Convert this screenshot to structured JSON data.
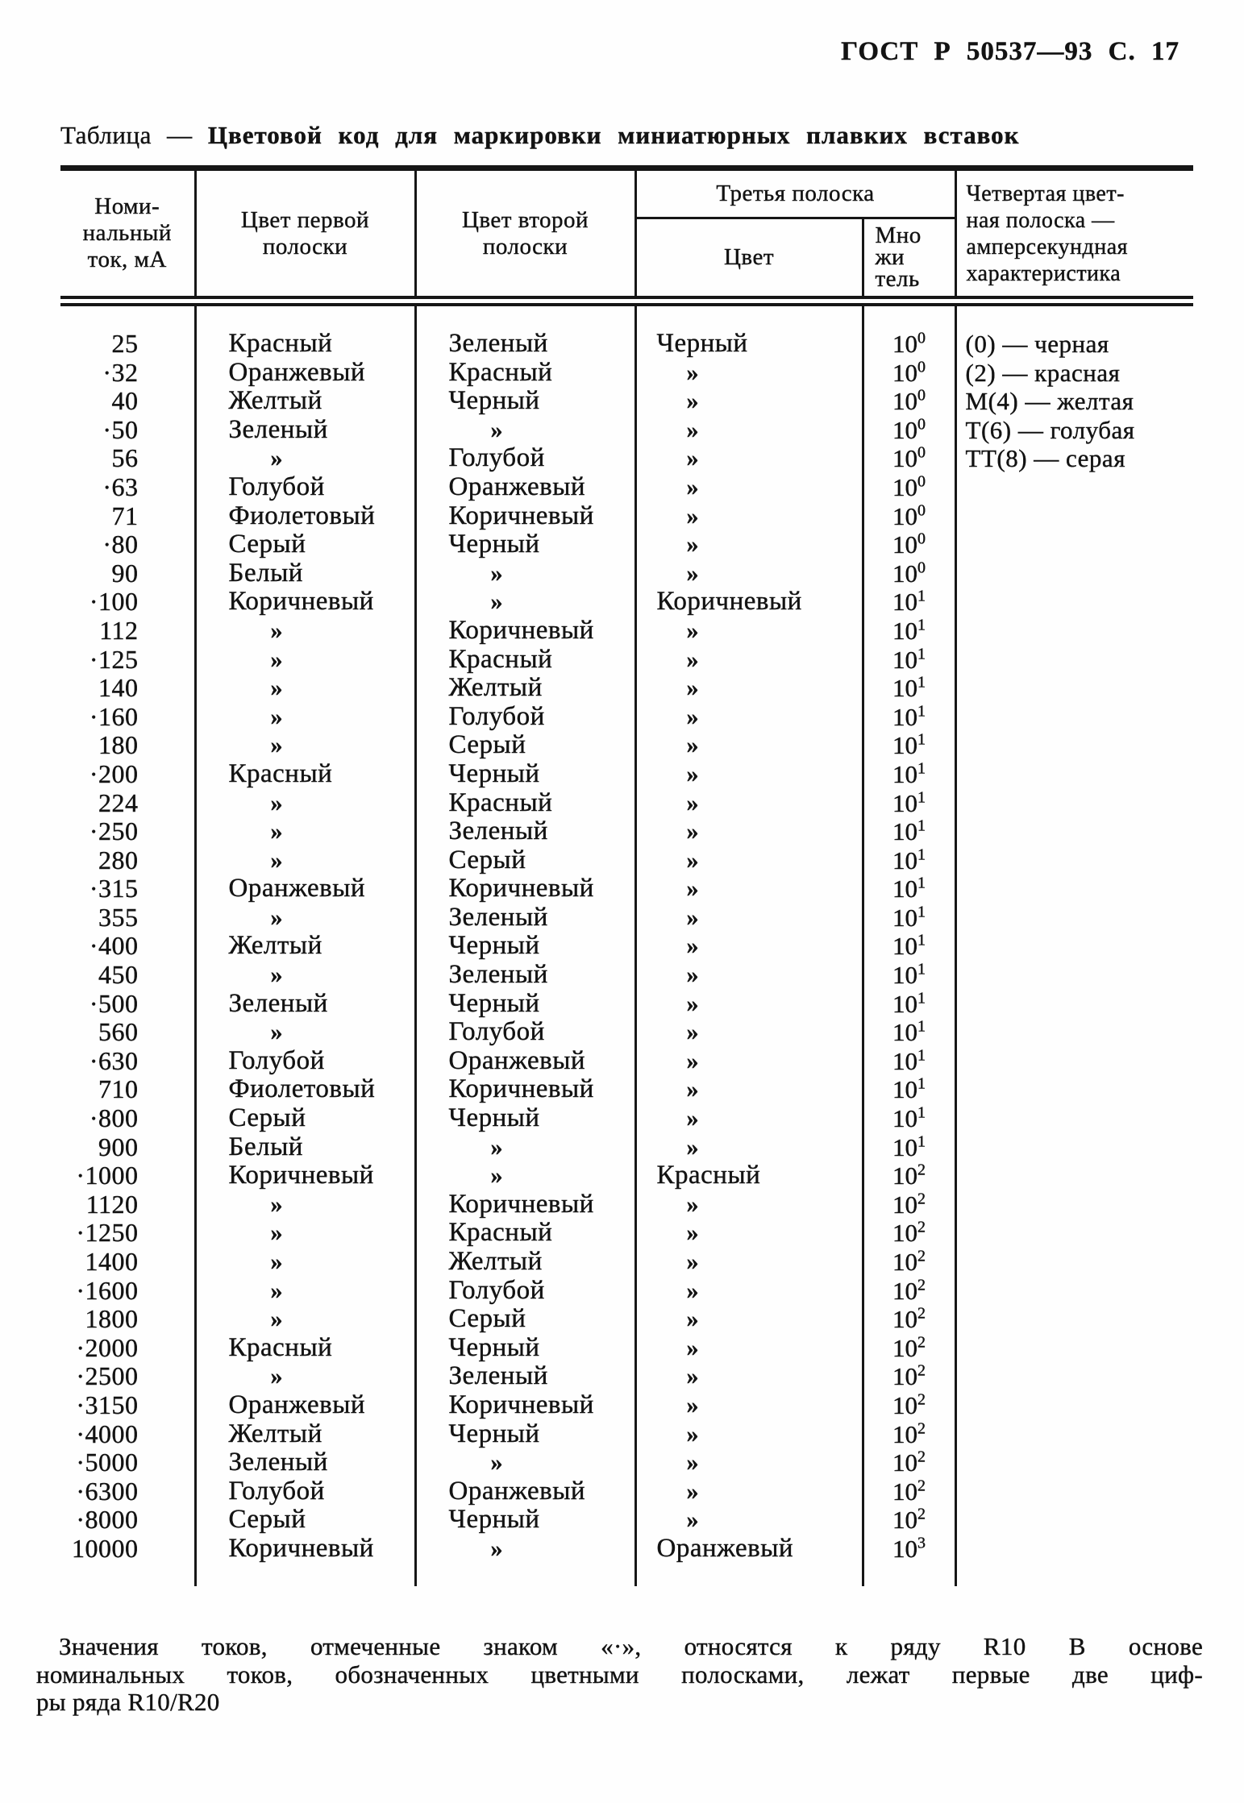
{
  "page_header": "ГОСТ Р 50537—93 С. 17",
  "title": {
    "prefix": "Таблица —",
    "text": "Цветовой код для маркировки миниатюрных плавких вставок"
  },
  "columns": {
    "current": "Номи-\nнальный\nток, мА",
    "first_stripe": "Цвет первой\nполоски",
    "second_stripe": "Цвет второй\nполоски",
    "third_stripe_group": "Третья полоска",
    "third_color": "Цвет",
    "multiplier": "Мно\nжи\nтель",
    "fourth_stripe": "Четвертая цвет-\nная полоска —\nамперсекундная\nхарактеристика"
  },
  "ditto_mark": "»",
  "dot_mark": "·",
  "multiplier_base": "10",
  "rows": [
    {
      "d": 0,
      "ma": "25",
      "s1": "Красный",
      "s2": "Зеленый",
      "s3": "Черный",
      "m": "0",
      "lg": "(0) — черная"
    },
    {
      "d": 1,
      "ma": "32",
      "s1": "Оранжевый",
      "s2": "Красный",
      "s3": "»",
      "m": "0",
      "lg": "(2) — красная"
    },
    {
      "d": 0,
      "ma": "40",
      "s1": "Желтый",
      "s2": "Черный",
      "s3": "»",
      "m": "0",
      "lg": "М(4) — желтая"
    },
    {
      "d": 1,
      "ma": "50",
      "s1": "Зеленый",
      "s2": "»",
      "s3": "»",
      "m": "0",
      "lg": "Т(6) — голубая"
    },
    {
      "d": 0,
      "ma": "56",
      "s1": "»",
      "s2": "Голубой",
      "s3": "»",
      "m": "0",
      "lg": "ТТ(8) — серая"
    },
    {
      "d": 1,
      "ma": "63",
      "s1": "Голубой",
      "s2": "Оранжевый",
      "s3": "»",
      "m": "0",
      "lg": ""
    },
    {
      "d": 0,
      "ma": "71",
      "s1": "Фиолетовый",
      "s2": "Коричневый",
      "s3": "»",
      "m": "0",
      "lg": ""
    },
    {
      "d": 1,
      "ma": "80",
      "s1": "Серый",
      "s2": "Черный",
      "s3": "»",
      "m": "0",
      "lg": ""
    },
    {
      "d": 0,
      "ma": "90",
      "s1": "Белый",
      "s2": "»",
      "s3": "»",
      "m": "0",
      "lg": ""
    },
    {
      "d": 1,
      "ma": "100",
      "s1": "Коричневый",
      "s2": "»",
      "s3": "Коричневый",
      "m": "1",
      "lg": ""
    },
    {
      "d": 0,
      "ma": "112",
      "s1": "»",
      "s2": "Коричневый",
      "s3": "»",
      "m": "1",
      "lg": ""
    },
    {
      "d": 1,
      "ma": "125",
      "s1": "»",
      "s2": "Красный",
      "s3": "»",
      "m": "1",
      "lg": ""
    },
    {
      "d": 0,
      "ma": "140",
      "s1": "»",
      "s2": "Желтый",
      "s3": "»",
      "m": "1",
      "lg": ""
    },
    {
      "d": 1,
      "ma": "160",
      "s1": "»",
      "s2": "Голубой",
      "s3": "»",
      "m": "1",
      "lg": ""
    },
    {
      "d": 0,
      "ma": "180",
      "s1": "»",
      "s2": "Серый",
      "s3": "»",
      "m": "1",
      "lg": ""
    },
    {
      "d": 1,
      "ma": "200",
      "s1": "Красный",
      "s2": "Черный",
      "s3": "»",
      "m": "1",
      "lg": ""
    },
    {
      "d": 0,
      "ma": "224",
      "s1": "»",
      "s2": "Красный",
      "s3": "»",
      "m": "1",
      "lg": ""
    },
    {
      "d": 1,
      "ma": "250",
      "s1": "»",
      "s2": "Зеленый",
      "s3": "»",
      "m": "1",
      "lg": ""
    },
    {
      "d": 0,
      "ma": "280",
      "s1": "»",
      "s2": "Серый",
      "s3": "»",
      "m": "1",
      "lg": ""
    },
    {
      "d": 1,
      "ma": "315",
      "s1": "Оранжевый",
      "s2": "Коричневый",
      "s3": "»",
      "m": "1",
      "lg": ""
    },
    {
      "d": 0,
      "ma": "355",
      "s1": "»",
      "s2": "Зеленый",
      "s3": "»",
      "m": "1",
      "lg": ""
    },
    {
      "d": 1,
      "ma": "400",
      "s1": "Желтый",
      "s2": "Черный",
      "s3": "»",
      "m": "1",
      "lg": ""
    },
    {
      "d": 0,
      "ma": "450",
      "s1": "»",
      "s2": "Зеленый",
      "s3": "»",
      "m": "1",
      "lg": ""
    },
    {
      "d": 1,
      "ma": "500",
      "s1": "Зеленый",
      "s2": "Черный",
      "s3": "»",
      "m": "1",
      "lg": ""
    },
    {
      "d": 0,
      "ma": "560",
      "s1": "»",
      "s2": "Голубой",
      "s3": "»",
      "m": "1",
      "lg": ""
    },
    {
      "d": 1,
      "ma": "630",
      "s1": "Голубой",
      "s2": "Оранжевый",
      "s3": "»",
      "m": "1",
      "lg": ""
    },
    {
      "d": 0,
      "ma": "710",
      "s1": "Фиолетовый",
      "s2": "Коричневый",
      "s3": "»",
      "m": "1",
      "lg": ""
    },
    {
      "d": 1,
      "ma": "800",
      "s1": "Серый",
      "s2": "Черный",
      "s3": "»",
      "m": "1",
      "lg": ""
    },
    {
      "d": 0,
      "ma": "900",
      "s1": "Белый",
      "s2": "»",
      "s3": "»",
      "m": "1",
      "lg": ""
    },
    {
      "d": 1,
      "ma": "1000",
      "s1": "Коричневый",
      "s2": "»",
      "s3": "Красный",
      "m": "2",
      "lg": ""
    },
    {
      "d": 0,
      "ma": "1120",
      "s1": "»",
      "s2": "Коричневый",
      "s3": "»",
      "m": "2",
      "lg": ""
    },
    {
      "d": 1,
      "ma": "1250",
      "s1": "»",
      "s2": "Красный",
      "s3": "»",
      "m": "2",
      "lg": ""
    },
    {
      "d": 0,
      "ma": "1400",
      "s1": "»",
      "s2": "Желтый",
      "s3": "»",
      "m": "2",
      "lg": ""
    },
    {
      "d": 1,
      "ma": "1600",
      "s1": "»",
      "s2": "Голубой",
      "s3": "»",
      "m": "2",
      "lg": ""
    },
    {
      "d": 0,
      "ma": "1800",
      "s1": "»",
      "s2": "Серый",
      "s3": "»",
      "m": "2",
      "lg": ""
    },
    {
      "d": 1,
      "ma": "2000",
      "s1": "Красный",
      "s2": "Черный",
      "s3": "»",
      "m": "2",
      "lg": ""
    },
    {
      "d": 1,
      "ma": "2500",
      "s1": "»",
      "s2": "Зеленый",
      "s3": "»",
      "m": "2",
      "lg": ""
    },
    {
      "d": 1,
      "ma": "3150",
      "s1": "Оранжевый",
      "s2": "Коричневый",
      "s3": "»",
      "m": "2",
      "lg": ""
    },
    {
      "d": 1,
      "ma": "4000",
      "s1": "Желтый",
      "s2": "Черный",
      "s3": "»",
      "m": "2",
      "lg": ""
    },
    {
      "d": 1,
      "ma": "5000",
      "s1": "Зеленый",
      "s2": "»",
      "s3": "»",
      "m": "2",
      "lg": ""
    },
    {
      "d": 1,
      "ma": "6300",
      "s1": "Голубой",
      "s2": "Оранжевый",
      "s3": "»",
      "m": "2",
      "lg": ""
    },
    {
      "d": 1,
      "ma": "8000",
      "s1": "Серый",
      "s2": "Черный",
      "s3": "»",
      "m": "2",
      "lg": ""
    },
    {
      "d": 0,
      "ma": "10000",
      "s1": "Коричневый",
      "s2": "»",
      "s3": "Оранжевый",
      "m": "3",
      "lg": ""
    }
  ],
  "footnote": {
    "line1": "Значения токов, отмеченные знаком «·», относятся к ряду R10 В основе",
    "line2": "номинальных токов, обозначенных цветными полосками, лежат первые две циф-",
    "line3": "ры ряда R10/R20"
  }
}
